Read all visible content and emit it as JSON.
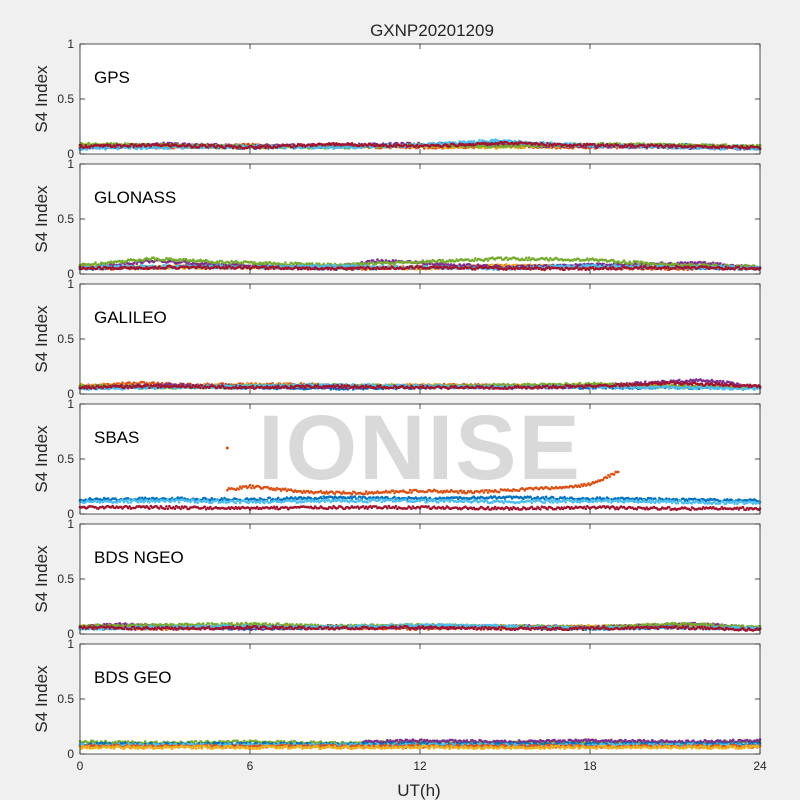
{
  "figure": {
    "title": "GXNP20201209",
    "watermark": "IONISE"
  },
  "chart_data": [
    {
      "type": "scatter",
      "name": "GPS",
      "label": "GPS",
      "xlabel": "UT(h)",
      "ylabel": "S4 Index",
      "xlim": [
        0,
        24
      ],
      "ylim": [
        0,
        1
      ],
      "xticks": [
        0,
        6,
        12,
        18,
        24
      ],
      "yticks": [
        0,
        0.5,
        1
      ],
      "series": [
        {
          "color": "#0072BD",
          "x": [
            0,
            3,
            6,
            9,
            12,
            14.5,
            18,
            21,
            24
          ],
          "y": [
            0.06,
            0.07,
            0.06,
            0.07,
            0.08,
            0.1,
            0.07,
            0.08,
            0.06
          ]
        },
        {
          "color": "#D95319",
          "x": [
            0,
            3,
            6,
            9,
            12,
            15,
            18,
            21,
            24
          ],
          "y": [
            0.07,
            0.06,
            0.08,
            0.07,
            0.06,
            0.07,
            0.06,
            0.07,
            0.06
          ]
        },
        {
          "color": "#EDB120",
          "x": [
            0,
            3,
            6,
            9,
            12,
            15,
            18,
            21,
            24
          ],
          "y": [
            0.08,
            0.07,
            0.06,
            0.08,
            0.07,
            0.06,
            0.08,
            0.07,
            0.06
          ]
        },
        {
          "color": "#7E2F8E",
          "x": [
            0,
            3,
            6,
            9,
            12,
            15,
            18,
            21,
            24
          ],
          "y": [
            0.06,
            0.09,
            0.07,
            0.08,
            0.09,
            0.08,
            0.07,
            0.06,
            0.05
          ]
        },
        {
          "color": "#77AC30",
          "x": [
            0,
            3,
            6,
            9,
            12,
            15,
            18,
            21,
            24
          ],
          "y": [
            0.09,
            0.08,
            0.07,
            0.06,
            0.08,
            0.07,
            0.09,
            0.08,
            0.07
          ]
        },
        {
          "color": "#4DBEEE",
          "x": [
            0,
            3,
            6,
            9,
            12,
            14.5,
            16,
            18,
            21,
            24
          ],
          "y": [
            0.05,
            0.06,
            0.07,
            0.06,
            0.08,
            0.12,
            0.1,
            0.08,
            0.06,
            0.05
          ]
        },
        {
          "color": "#A2142F",
          "x": [
            0,
            3,
            6,
            9,
            12,
            15,
            18,
            21,
            24
          ],
          "y": [
            0.07,
            0.08,
            0.06,
            0.09,
            0.07,
            0.1,
            0.08,
            0.07,
            0.06
          ]
        }
      ]
    },
    {
      "type": "scatter",
      "name": "GLONASS",
      "label": "GLONASS",
      "xlabel": "UT(h)",
      "ylabel": "S4 Index",
      "xlim": [
        0,
        24
      ],
      "ylim": [
        0,
        1
      ],
      "xticks": [
        0,
        6,
        12,
        18,
        24
      ],
      "yticks": [
        0,
        0.5,
        1
      ],
      "series": [
        {
          "color": "#0072BD",
          "x": [
            0,
            3,
            6,
            9,
            12,
            15,
            18,
            21,
            24
          ],
          "y": [
            0.05,
            0.06,
            0.07,
            0.05,
            0.06,
            0.06,
            0.08,
            0.06,
            0.05
          ]
        },
        {
          "color": "#D95319",
          "x": [
            0,
            2,
            4,
            6,
            8,
            10,
            12,
            15,
            18,
            21,
            24
          ],
          "y": [
            0.06,
            0.05,
            0.08,
            0.06,
            0.07,
            0.05,
            0.06,
            0.07,
            0.06,
            0.05,
            0.06
          ]
        },
        {
          "color": "#EDB120",
          "x": [
            0,
            3,
            6,
            9,
            12,
            15,
            18,
            21,
            24
          ],
          "y": [
            0.07,
            0.06,
            0.06,
            0.07,
            0.05,
            0.08,
            0.06,
            0.07,
            0.06
          ]
        },
        {
          "color": "#7E2F8E",
          "x": [
            0,
            2.5,
            6,
            9,
            10.5,
            12,
            15,
            18,
            22,
            24
          ],
          "y": [
            0.05,
            0.12,
            0.07,
            0.06,
            0.12,
            0.1,
            0.06,
            0.08,
            0.1,
            0.05
          ]
        },
        {
          "color": "#77AC30",
          "x": [
            0,
            2.5,
            5,
            9,
            12,
            15,
            18,
            21,
            24
          ],
          "y": [
            0.08,
            0.14,
            0.11,
            0.08,
            0.11,
            0.14,
            0.13,
            0.08,
            0.07
          ]
        },
        {
          "color": "#4DBEEE",
          "x": [
            0,
            3,
            6,
            9,
            12,
            15,
            18,
            21,
            24
          ],
          "y": [
            0.06,
            0.07,
            0.06,
            0.07,
            0.06,
            0.05,
            0.07,
            0.06,
            0.06
          ]
        },
        {
          "color": "#A2142F",
          "x": [
            0,
            3,
            6,
            9,
            12,
            15,
            18,
            21,
            24
          ],
          "y": [
            0.05,
            0.06,
            0.06,
            0.05,
            0.06,
            0.05,
            0.05,
            0.06,
            0.05
          ]
        }
      ]
    },
    {
      "type": "scatter",
      "name": "GALILEO",
      "label": "GALILEO",
      "xlabel": "UT(h)",
      "ylabel": "S4 Index",
      "xlim": [
        0,
        24
      ],
      "ylim": [
        0,
        1
      ],
      "xticks": [
        0,
        6,
        12,
        18,
        24
      ],
      "yticks": [
        0,
        0.5,
        1
      ],
      "series": [
        {
          "color": "#0072BD",
          "x": [
            0,
            3,
            6,
            9,
            12,
            15,
            18,
            21,
            24
          ],
          "y": [
            0.06,
            0.07,
            0.06,
            0.05,
            0.06,
            0.07,
            0.06,
            0.06,
            0.06
          ]
        },
        {
          "color": "#D95319",
          "x": [
            0,
            2,
            4,
            7,
            10,
            13,
            16,
            19,
            21
          ],
          "y": [
            0.07,
            0.1,
            0.08,
            0.09,
            0.07,
            0.08,
            0.07,
            0.08,
            0.07
          ]
        },
        {
          "color": "#EDB120",
          "x": [
            0,
            3,
            6,
            9,
            12,
            15,
            18,
            21,
            24
          ],
          "y": [
            0.08,
            0.07,
            0.08,
            0.07,
            0.08,
            0.07,
            0.08,
            0.07,
            0.06
          ]
        },
        {
          "color": "#7E2F8E",
          "x": [
            0,
            3,
            6,
            9,
            12,
            15,
            18,
            22,
            24
          ],
          "y": [
            0.06,
            0.08,
            0.07,
            0.06,
            0.07,
            0.06,
            0.07,
            0.13,
            0.06
          ]
        },
        {
          "color": "#77AC30",
          "x": [
            0,
            3,
            6,
            9,
            12,
            15,
            18,
            21,
            24
          ],
          "y": [
            0.07,
            0.06,
            0.07,
            0.08,
            0.07,
            0.08,
            0.09,
            0.07,
            0.06
          ]
        },
        {
          "color": "#4DBEEE",
          "x": [
            0,
            3,
            6,
            9,
            12,
            15,
            18,
            21,
            24
          ],
          "y": [
            0.05,
            0.06,
            0.07,
            0.08,
            0.07,
            0.06,
            0.07,
            0.06,
            0.05
          ]
        },
        {
          "color": "#A2142F",
          "x": [
            0,
            3,
            6,
            9,
            12,
            15,
            18,
            21,
            24
          ],
          "y": [
            0.06,
            0.07,
            0.06,
            0.07,
            0.06,
            0.06,
            0.07,
            0.1,
            0.07
          ]
        }
      ]
    },
    {
      "type": "scatter",
      "name": "SBAS",
      "label": "SBAS",
      "xlabel": "UT(h)",
      "ylabel": "S4 Index",
      "xlim": [
        0,
        24
      ],
      "ylim": [
        0,
        1
      ],
      "xticks": [
        0,
        6,
        12,
        18,
        24
      ],
      "yticks": [
        0,
        0.5,
        1
      ],
      "series": [
        {
          "color": "#0072BD",
          "x": [
            0,
            3,
            6,
            9,
            12,
            15,
            18,
            21,
            24
          ],
          "y": [
            0.13,
            0.14,
            0.13,
            0.15,
            0.14,
            0.15,
            0.14,
            0.13,
            0.12
          ]
        },
        {
          "color": "#D95319",
          "x": [
            5.2,
            6,
            8,
            10,
            12,
            14,
            16,
            17,
            18,
            19
          ],
          "y": [
            0.22,
            0.25,
            0.2,
            0.19,
            0.21,
            0.2,
            0.23,
            0.24,
            0.27,
            0.38
          ]
        },
        {
          "color": "#D95319",
          "x": [
            5.2
          ],
          "y": [
            0.6
          ]
        },
        {
          "color": "#4DBEEE",
          "x": [
            0,
            3,
            6,
            9,
            12,
            15,
            18,
            21,
            24
          ],
          "y": [
            0.11,
            0.12,
            0.11,
            0.12,
            0.12,
            0.11,
            0.12,
            0.11,
            0.1
          ]
        },
        {
          "color": "#A2142F",
          "x": [
            0,
            3,
            6,
            9,
            12,
            15,
            18,
            21,
            24
          ],
          "y": [
            0.06,
            0.06,
            0.05,
            0.06,
            0.06,
            0.05,
            0.06,
            0.05,
            0.05
          ]
        }
      ]
    },
    {
      "type": "scatter",
      "name": "BDS NGEO",
      "label": "BDS NGEO",
      "xlabel": "UT(h)",
      "ylabel": "S4 Index",
      "xlim": [
        0,
        24
      ],
      "ylim": [
        0,
        1
      ],
      "xticks": [
        0,
        6,
        12,
        18,
        24
      ],
      "yticks": [
        0,
        0.5,
        1
      ],
      "series": [
        {
          "color": "#0072BD",
          "x": [
            0,
            3,
            6,
            9,
            12,
            15,
            18,
            21,
            24
          ],
          "y": [
            0.05,
            0.06,
            0.05,
            0.06,
            0.07,
            0.06,
            0.05,
            0.06,
            0.05
          ]
        },
        {
          "color": "#D95319",
          "x": [
            0,
            3,
            6,
            9,
            12,
            15,
            18,
            21,
            24
          ],
          "y": [
            0.06,
            0.05,
            0.07,
            0.06,
            0.05,
            0.07,
            0.06,
            0.08,
            0.05
          ]
        },
        {
          "color": "#EDB120",
          "x": [
            0,
            3,
            6,
            9,
            12,
            15,
            18,
            21,
            24
          ],
          "y": [
            0.07,
            0.06,
            0.08,
            0.06,
            0.07,
            0.06,
            0.07,
            0.07,
            0.06
          ]
        },
        {
          "color": "#7E2F8E",
          "x": [
            0,
            1.5,
            3,
            6,
            9,
            12,
            15,
            18,
            22,
            24
          ],
          "y": [
            0.06,
            0.09,
            0.07,
            0.05,
            0.07,
            0.06,
            0.07,
            0.06,
            0.09,
            0.05
          ]
        },
        {
          "color": "#77AC30",
          "x": [
            0,
            3,
            6,
            9,
            12,
            15,
            18,
            21,
            24
          ],
          "y": [
            0.07,
            0.08,
            0.09,
            0.07,
            0.08,
            0.07,
            0.06,
            0.09,
            0.06
          ]
        },
        {
          "color": "#4DBEEE",
          "x": [
            0,
            3,
            6,
            9,
            12,
            15,
            18,
            21,
            24
          ],
          "y": [
            0.05,
            0.06,
            0.07,
            0.06,
            0.08,
            0.07,
            0.05,
            0.06,
            0.05
          ]
        },
        {
          "color": "#A2142F",
          "x": [
            0,
            3,
            6,
            9,
            12,
            15,
            18,
            21,
            24
          ],
          "y": [
            0.06,
            0.05,
            0.06,
            0.05,
            0.06,
            0.05,
            0.05,
            0.06,
            0.04
          ]
        }
      ]
    },
    {
      "type": "scatter",
      "name": "BDS GEO",
      "label": "BDS GEO",
      "xlabel": "UT(h)",
      "ylabel": "S4 Index",
      "xlim": [
        0,
        24
      ],
      "ylim": [
        0,
        1
      ],
      "xticks": [
        0,
        6,
        12,
        18,
        24
      ],
      "yticks": [
        0,
        0.5,
        1
      ],
      "series": [
        {
          "color": "#77AC30",
          "x": [
            0,
            3,
            6,
            9,
            12,
            15,
            18,
            21,
            24
          ],
          "y": [
            0.11,
            0.1,
            0.11,
            0.1,
            0.11,
            0.1,
            0.11,
            0.1,
            0.11
          ]
        },
        {
          "color": "#7E2F8E",
          "x": [
            10,
            12,
            15,
            18,
            21,
            24
          ],
          "y": [
            0.11,
            0.12,
            0.11,
            0.12,
            0.11,
            0.12
          ]
        },
        {
          "color": "#0072BD",
          "x": [
            0,
            3,
            6,
            9,
            12,
            15,
            18,
            21,
            24
          ],
          "y": [
            0.09,
            0.09,
            0.09,
            0.09,
            0.09,
            0.09,
            0.09,
            0.09,
            0.09
          ]
        },
        {
          "color": "#4DBEEE",
          "x": [
            0,
            3,
            6,
            9,
            12,
            15,
            18,
            21,
            24
          ],
          "y": [
            0.08,
            0.08,
            0.08,
            0.08,
            0.08,
            0.08,
            0.08,
            0.08,
            0.08
          ]
        },
        {
          "color": "#D95319",
          "x": [
            0,
            3,
            6,
            9,
            12,
            15,
            18,
            21,
            24
          ],
          "y": [
            0.07,
            0.07,
            0.07,
            0.07,
            0.07,
            0.07,
            0.07,
            0.07,
            0.07
          ]
        },
        {
          "color": "#EDB120",
          "x": [
            0,
            3,
            6,
            9,
            12,
            15,
            18,
            21,
            24
          ],
          "y": [
            0.06,
            0.06,
            0.06,
            0.06,
            0.06,
            0.06,
            0.06,
            0.06,
            0.06
          ]
        }
      ]
    }
  ]
}
